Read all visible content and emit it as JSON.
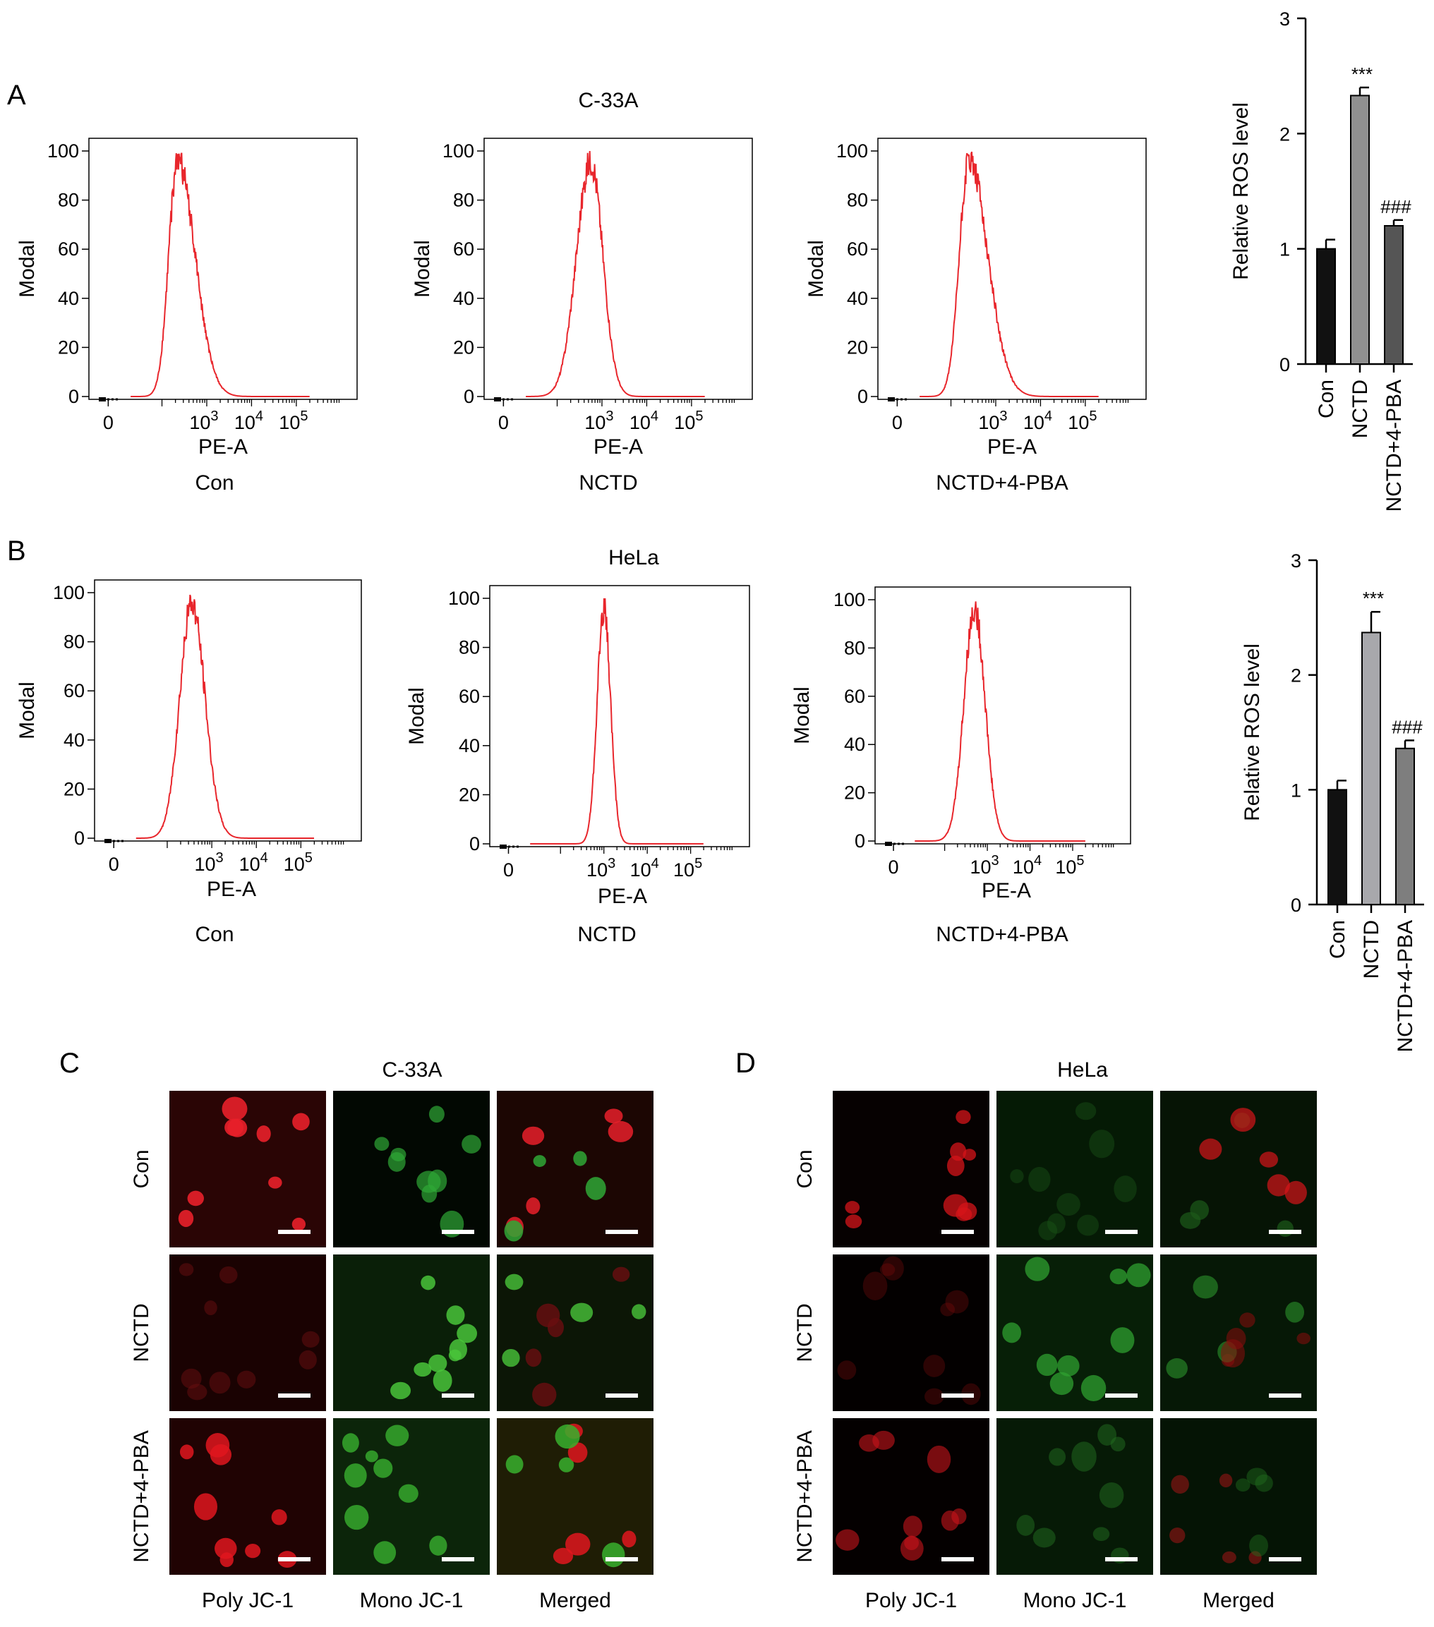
{
  "panels": {
    "A": {
      "letter": "A",
      "cell_line": "C-33A",
      "histograms": [
        {
          "caption": "Con",
          "ylabel": "Modal",
          "xlabel": "PE-A",
          "peak_log": 2.35,
          "width_left": 0.28,
          "width_right": 0.55
        },
        {
          "caption": "NCTD",
          "ylabel": "Modal",
          "xlabel": "PE-A",
          "peak_log": 2.75,
          "width_left": 0.45,
          "width_right": 0.38
        },
        {
          "caption": "NCTD+4-PBA",
          "ylabel": "Modal",
          "xlabel": "PE-A",
          "peak_log": 2.4,
          "width_left": 0.3,
          "width_right": 0.6
        }
      ]
    },
    "B": {
      "letter": "B",
      "cell_line": "HeLa",
      "histograms": [
        {
          "caption": "Con",
          "ylabel": "Modal",
          "xlabel": "PE-A",
          "peak_log": 2.55,
          "width_left": 0.38,
          "width_right": 0.42
        },
        {
          "caption": "NCTD",
          "ylabel": "Modal",
          "xlabel": "PE-A",
          "peak_log": 3.0,
          "width_left": 0.22,
          "width_right": 0.22
        },
        {
          "caption": "NCTD+4-PBA",
          "ylabel": "Modal",
          "xlabel": "PE-A",
          "peak_log": 2.7,
          "width_left": 0.35,
          "width_right": 0.35
        }
      ]
    },
    "C": {
      "letter": "C",
      "cell_line": "C-33A",
      "rows": [
        "Con",
        "NCTD",
        "NCTD+4-PBA"
      ],
      "columns": [
        "Poly JC-1",
        "Mono JC-1",
        "Merged"
      ]
    },
    "D": {
      "letter": "D",
      "cell_line": "HeLa",
      "rows": [
        "Con",
        "NCTD",
        "NCTD+4-PBA"
      ],
      "columns": [
        "Poly JC-1",
        "Mono JC-1",
        "Merged"
      ]
    }
  },
  "histogram_axis": {
    "y_ticks": [
      "0",
      "20",
      "40",
      "60",
      "80",
      "100"
    ],
    "x_tick_zero": "0",
    "x_tick_base": "10",
    "x_tick_exponents": [
      "3",
      "4",
      "5"
    ]
  },
  "chart_data": [
    {
      "type": "bar",
      "panel": "A",
      "title": "",
      "ylabel": "Relative ROS level",
      "ylim": [
        0,
        3
      ],
      "yticks": [
        0,
        1,
        2,
        3
      ],
      "categories": [
        "Con",
        "NCTD",
        "NCTD+4-PBA"
      ],
      "values": [
        1.0,
        2.33,
        1.2
      ],
      "errors": [
        0.08,
        0.07,
        0.05
      ],
      "annotations": [
        "",
        "***",
        "###"
      ],
      "colors": [
        "#111111",
        "#909090",
        "#555555"
      ]
    },
    {
      "type": "bar",
      "panel": "B",
      "title": "",
      "ylabel": "Relative ROS level",
      "ylim": [
        0,
        3
      ],
      "yticks": [
        0,
        1,
        2,
        3
      ],
      "categories": [
        "Con",
        "NCTD",
        "NCTD+4-PBA"
      ],
      "values": [
        1.0,
        2.37,
        1.36
      ],
      "errors": [
        0.08,
        0.18,
        0.07
      ],
      "annotations": [
        "",
        "***",
        "###"
      ],
      "colors": [
        "#111111",
        "#a8a8ac",
        "#7e7e7e"
      ]
    }
  ]
}
